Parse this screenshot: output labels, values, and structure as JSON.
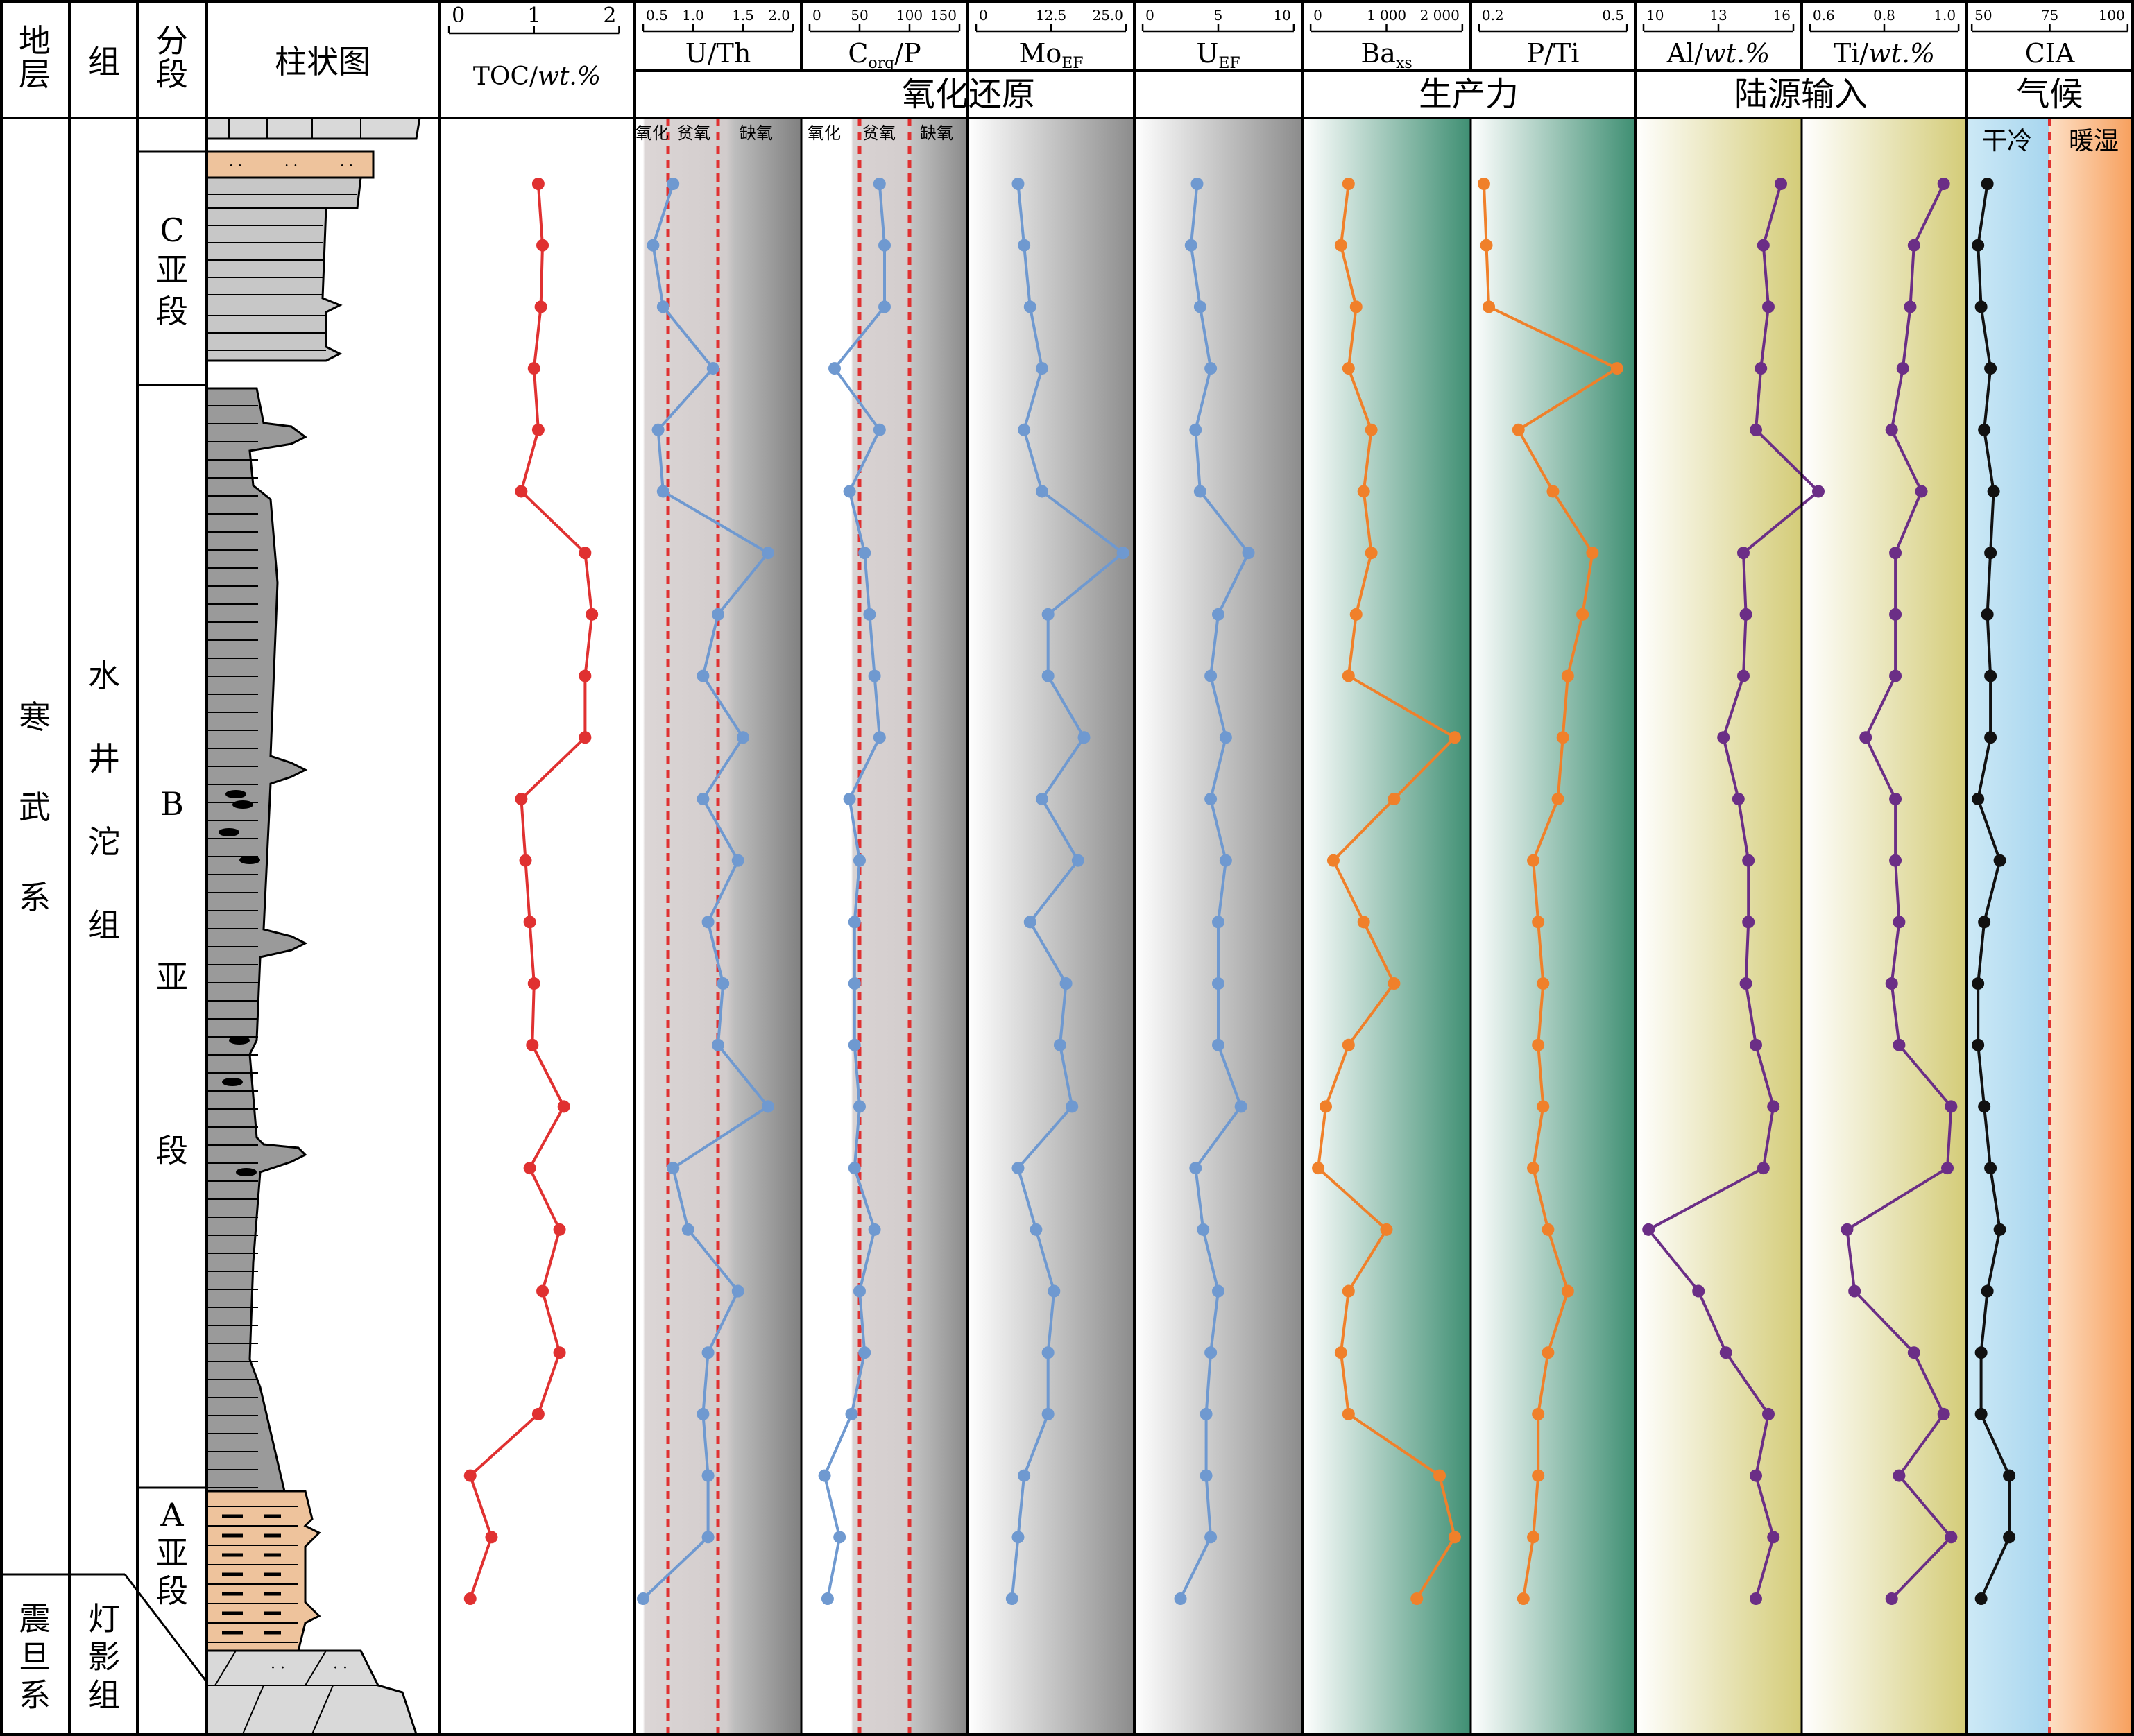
{
  "strata": {
    "col_stratum": "地层",
    "col_formation": "组",
    "col_member": "分段",
    "col_column": "柱状图",
    "system_upper": "寒武系",
    "system_lower": "震旦系",
    "formation_upper": "水井沱组",
    "formation_lower": "灯影组",
    "member_c": "C亚段",
    "member_b": "B亚段",
    "member_a": "A亚段"
  },
  "groups": {
    "redox": "氧化还原",
    "productivity": "生产力",
    "terrigenous": "陆源输入",
    "climate": "气候"
  },
  "zones": {
    "oxic": "氧化",
    "suboxic": "贫氧",
    "anoxic": "缺氧",
    "dry_cold": "干冷",
    "warm_humid": "暖湿"
  },
  "colors": {
    "toc": "#e03131",
    "redox": "#6f99d0",
    "productivity": "#f0802a",
    "terrigenous": "#6b2e86",
    "climate": "#111111",
    "threshold": "#e03131",
    "sandstone": "#eec39c",
    "shale": "#9a9a9a",
    "siltstone": "#c7c7c7",
    "dolomite": "#d9d9d9"
  },
  "chart_data": [
    {
      "type": "line",
      "label": "TOC/wt.%",
      "ticks": [
        "0",
        "1",
        "2"
      ],
      "xlim": [
        0,
        2
      ],
      "values": [
        1.05,
        1.1,
        1.08,
        1.0,
        1.05,
        0.85,
        1.6,
        1.68,
        1.6,
        1.6,
        0.85,
        0.9,
        0.95,
        1.0,
        0.98,
        1.35,
        0.95,
        1.3,
        1.1,
        1.3,
        1.05,
        0.25,
        0.5,
        0.25
      ]
    },
    {
      "type": "line",
      "label": "U/Th",
      "ticks": [
        "0.5",
        "1.0",
        "1.5",
        "2.0"
      ],
      "xlim": [
        0.5,
        2.0
      ],
      "thresholds": [
        0.75,
        1.25
      ],
      "values": [
        0.8,
        0.6,
        0.7,
        1.2,
        0.65,
        0.7,
        1.75,
        1.25,
        1.1,
        1.5,
        1.1,
        1.45,
        1.15,
        1.3,
        1.25,
        1.75,
        0.8,
        0.95,
        1.45,
        1.15,
        1.1,
        1.15,
        1.15,
        0.5
      ]
    },
    {
      "type": "line",
      "label": "Corg/P",
      "ticks": [
        "0",
        "50",
        "100",
        "150"
      ],
      "xlim": [
        0,
        150
      ],
      "thresholds": [
        50,
        100
      ],
      "values": [
        70,
        75,
        75,
        25,
        70,
        40,
        55,
        60,
        65,
        70,
        40,
        50,
        45,
        45,
        45,
        50,
        45,
        65,
        50,
        55,
        42,
        15,
        30,
        18
      ]
    },
    {
      "type": "line",
      "label": "MoEF",
      "ticks": [
        "0",
        "12.5",
        "25.0"
      ],
      "xlim": [
        0,
        25
      ],
      "values": [
        7,
        8,
        9,
        11,
        8,
        11,
        24.5,
        12,
        12,
        18,
        11,
        17,
        9,
        15,
        14,
        16,
        7,
        10,
        13,
        12,
        12,
        8,
        7,
        6
      ]
    },
    {
      "type": "line",
      "label": "UEF",
      "ticks": [
        "0",
        "5",
        "10"
      ],
      "xlim": [
        0,
        10
      ],
      "values": [
        3.6,
        3.2,
        3.8,
        4.5,
        3.5,
        3.8,
        7,
        5,
        4.5,
        5.5,
        4.5,
        5.5,
        5,
        5,
        5,
        6.5,
        3.5,
        4,
        5,
        4.5,
        4.2,
        4.2,
        4.5,
        2.5
      ]
    },
    {
      "type": "line",
      "label": "Baxs",
      "ticks": [
        "0",
        "1 000",
        "2 000"
      ],
      "xlim": [
        0,
        2000
      ],
      "values": [
        500,
        400,
        600,
        500,
        800,
        700,
        800,
        600,
        500,
        1900,
        1100,
        300,
        700,
        1100,
        500,
        200,
        100,
        1000,
        500,
        400,
        500,
        1700,
        1900,
        1400
      ]
    },
    {
      "type": "line",
      "label": "P/Ti",
      "ticks": [
        "0.2",
        "0.5"
      ],
      "xlim": [
        0.2,
        0.5
      ],
      "values": [
        0.21,
        0.215,
        0.22,
        0.48,
        0.28,
        0.35,
        0.43,
        0.41,
        0.38,
        0.37,
        0.36,
        0.31,
        0.32,
        0.33,
        0.32,
        0.33,
        0.31,
        0.34,
        0.38,
        0.34,
        0.32,
        0.32,
        0.31,
        0.29
      ]
    },
    {
      "type": "line",
      "label": "Al/wt.%",
      "ticks": [
        "10",
        "13",
        "16"
      ],
      "xlim": [
        10,
        16
      ],
      "values": [
        15.5,
        14.8,
        15.0,
        14.7,
        14.5,
        17.0,
        14.0,
        14.1,
        14.0,
        13.2,
        13.8,
        14.2,
        14.2,
        14.1,
        14.5,
        15.2,
        14.8,
        10.2,
        12.2,
        13.3,
        15.0,
        14.5,
        15.2,
        14.5
      ]
    },
    {
      "type": "line",
      "label": "Ti/wt.%",
      "ticks": [
        "0.6",
        "0.8",
        "1.0"
      ],
      "xlim": [
        0.6,
        1.0
      ],
      "values": [
        0.96,
        0.88,
        0.87,
        0.85,
        0.82,
        0.9,
        0.83,
        0.83,
        0.83,
        0.75,
        0.83,
        0.83,
        0.84,
        0.82,
        0.84,
        0.98,
        0.97,
        0.7,
        0.72,
        0.88,
        0.96,
        0.84,
        0.98,
        0.82
      ]
    },
    {
      "type": "line",
      "label": "CIA",
      "ticks": [
        "50",
        "75",
        "100"
      ],
      "xlim": [
        50,
        100
      ],
      "thresholds": [
        75
      ],
      "values": [
        55,
        52,
        53,
        56,
        54,
        57,
        56,
        55,
        56,
        56,
        52,
        59,
        54,
        52,
        52,
        54,
        56,
        59,
        55,
        53,
        53,
        62,
        62,
        53
      ]
    }
  ]
}
